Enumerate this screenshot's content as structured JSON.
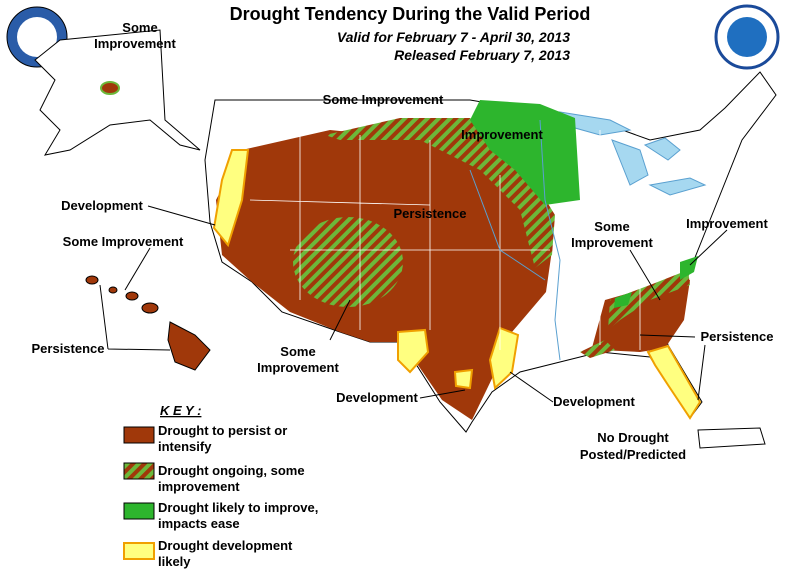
{
  "header": {
    "title": "Drought Tendency During the Valid Period",
    "valid": "Valid for February 7 - April 30, 2013",
    "released": "Released February 7, 2013"
  },
  "labels": [
    [
      "Some",
      "Improvement"
    ],
    [
      "Some Improvement"
    ],
    [
      "Improvement"
    ],
    [
      "Persistence"
    ],
    [
      "Development"
    ],
    [
      "Some Improvement"
    ],
    [
      "Persistence"
    ],
    [
      "Some",
      "Improvement"
    ],
    [
      "Development"
    ],
    [
      "Development"
    ],
    [
      "Some",
      "Improvement"
    ],
    [
      "Improvement"
    ],
    [
      "Persistence"
    ],
    [
      "No Drought",
      "Posted/Predicted"
    ]
  ],
  "key": {
    "title": "K E Y :",
    "items": [
      [
        "Drought to persist or",
        "intensify"
      ],
      [
        "Drought ongoing, some",
        "improvement"
      ],
      [
        "Drought likely to improve,",
        "impacts ease"
      ],
      [
        "Drought development",
        "likely"
      ]
    ]
  }
}
